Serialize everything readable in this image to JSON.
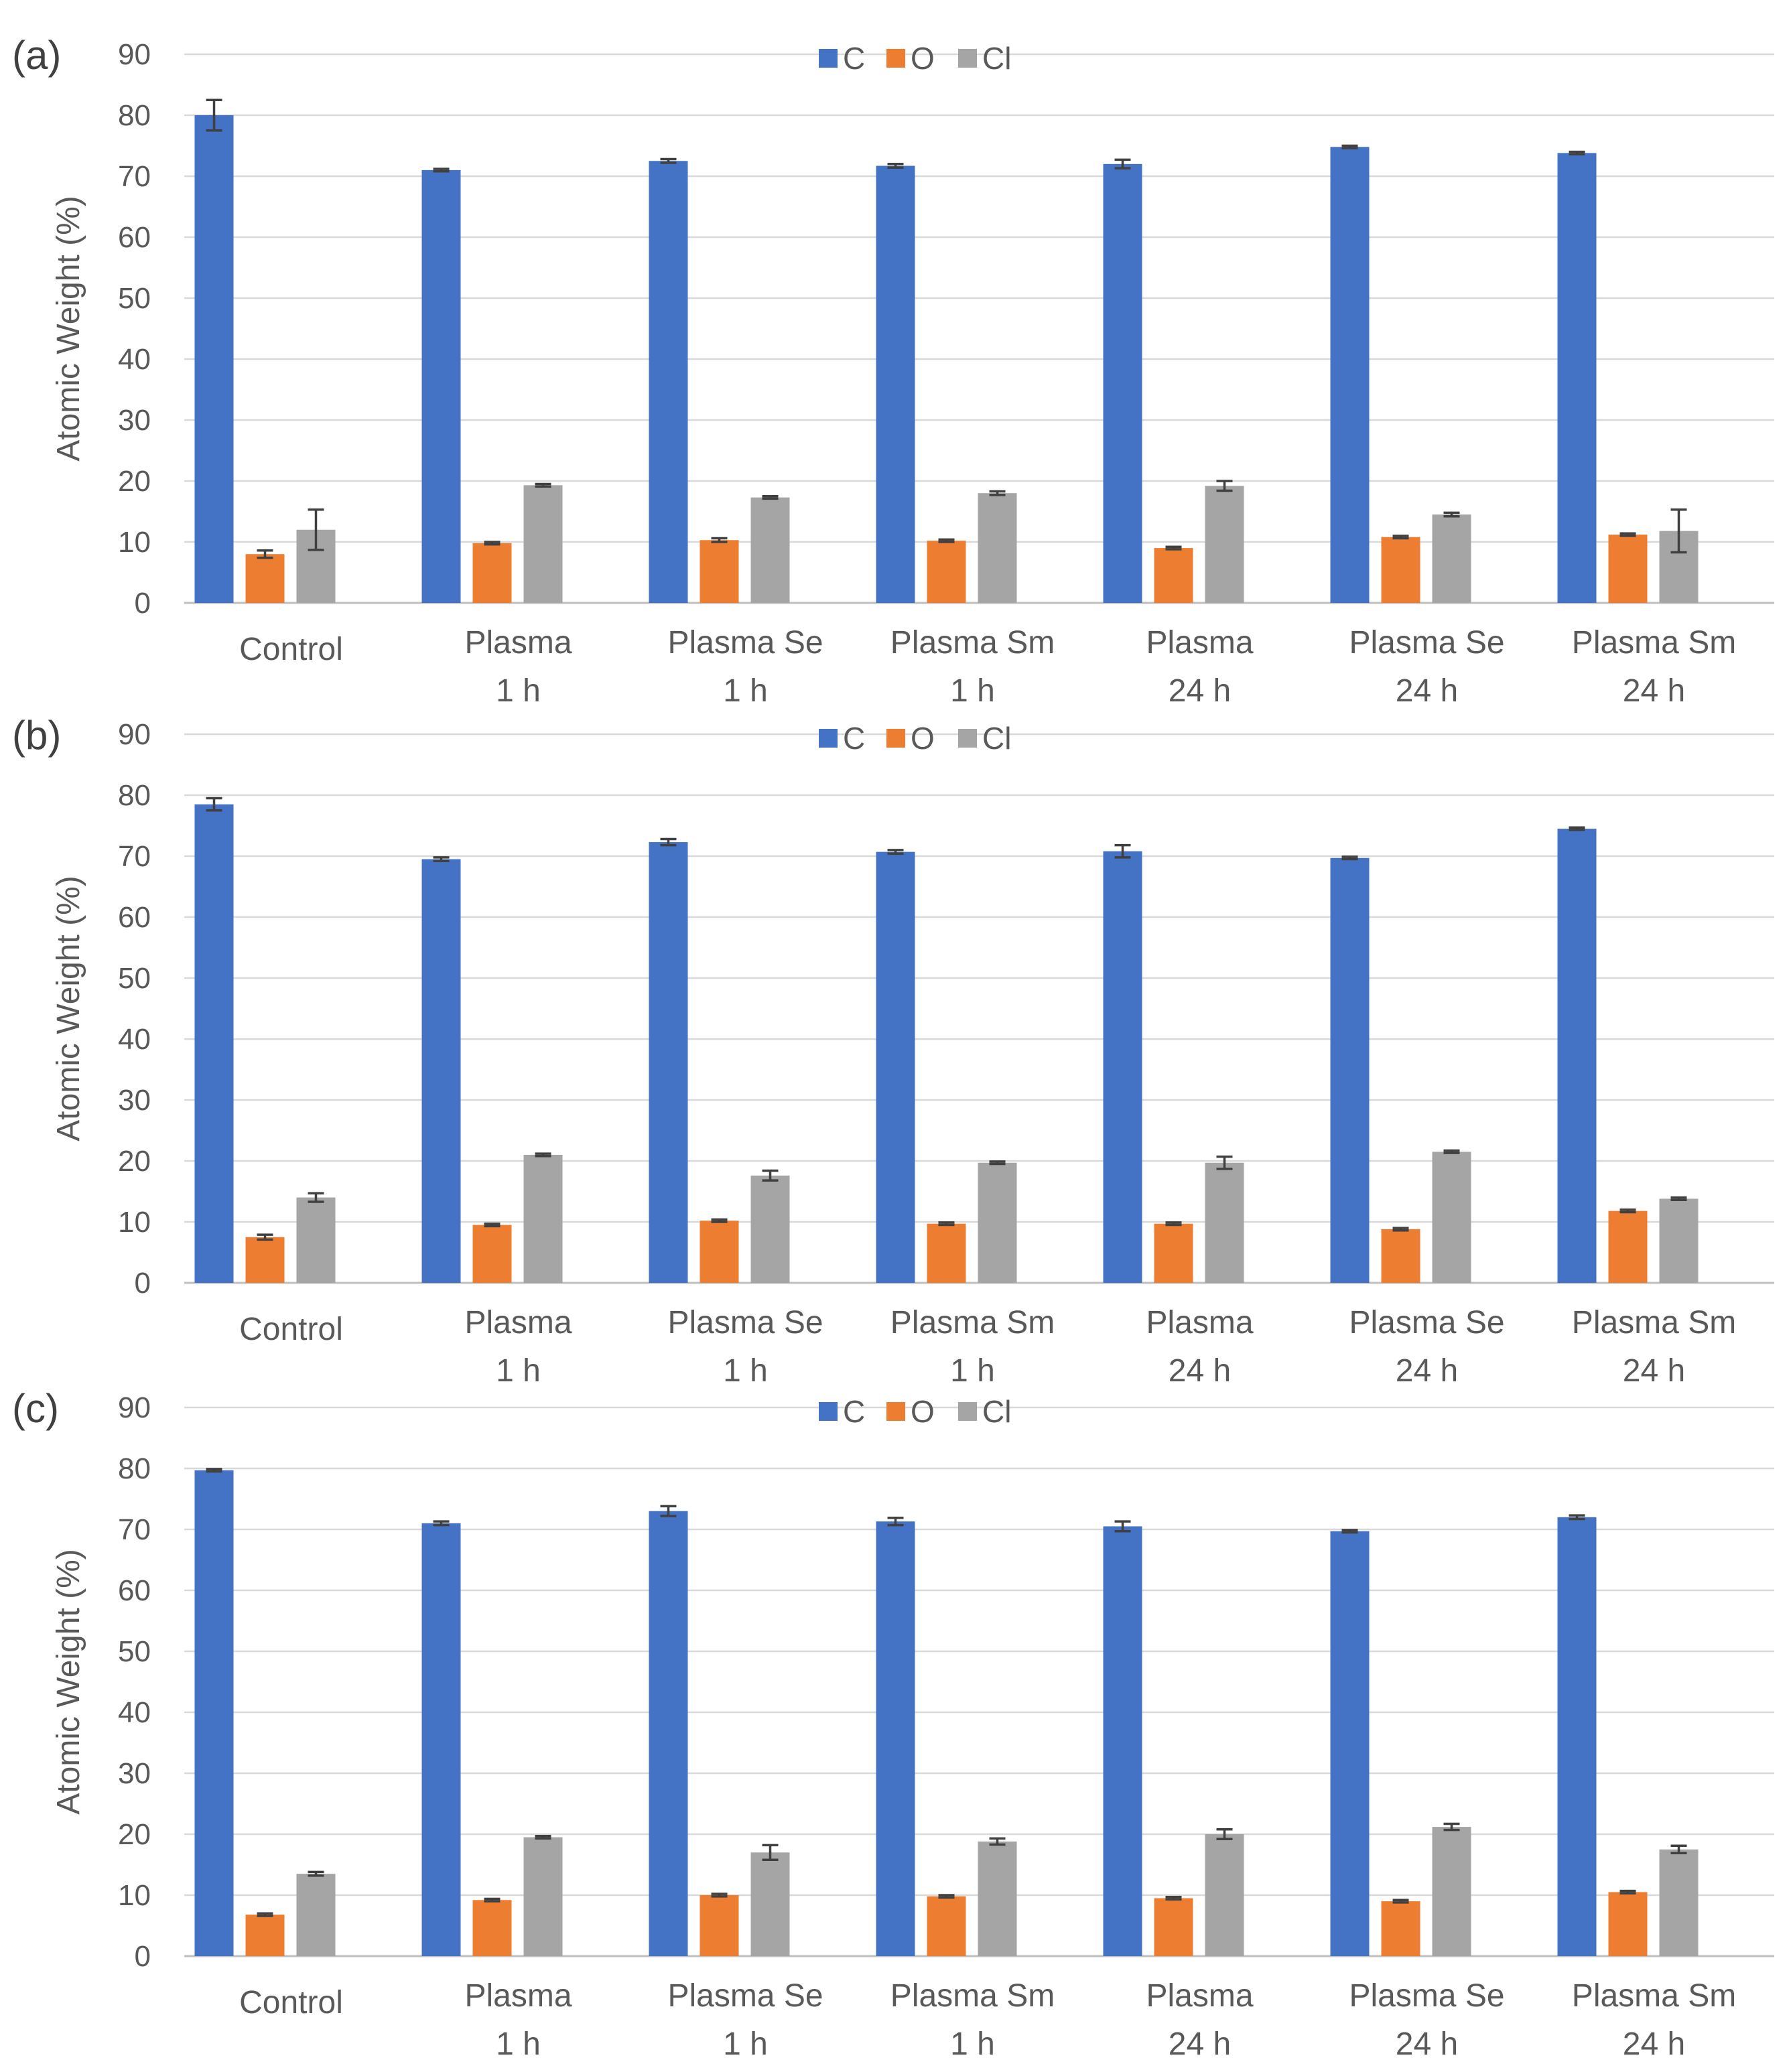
{
  "series_names": [
    "C",
    "O",
    "Cl"
  ],
  "series_colors": [
    "#4472C4",
    "#ED7D31",
    "#A5A5A5"
  ],
  "chart_data": [
    {
      "type": "bar",
      "panel": "(a)",
      "ylabel": "Atomic Weight (%)",
      "ylim": [
        0,
        90
      ],
      "yticks": [
        0,
        10,
        20,
        30,
        40,
        50,
        60,
        70,
        80,
        90
      ],
      "categories": [
        [
          "Control"
        ],
        [
          "Plasma",
          "1 h"
        ],
        [
          "Plasma Se",
          "1 h"
        ],
        [
          "Plasma Sm",
          "1 h"
        ],
        [
          "Plasma",
          "24 h"
        ],
        [
          "Plasma Se",
          "24 h"
        ],
        [
          "Plasma Sm",
          "24 h"
        ]
      ],
      "legend": [
        "C",
        "O",
        "Cl"
      ],
      "series": [
        {
          "name": "C",
          "values": [
            80.0,
            71.0,
            72.5,
            71.7,
            72.0,
            74.8,
            73.8
          ],
          "errors": [
            2.5,
            0.2,
            0.3,
            0.3,
            0.7,
            0.2,
            0.2
          ]
        },
        {
          "name": "O",
          "values": [
            8.0,
            9.8,
            10.3,
            10.2,
            9.0,
            10.8,
            11.2
          ],
          "errors": [
            0.6,
            0.2,
            0.3,
            0.2,
            0.2,
            0.2,
            0.2
          ]
        },
        {
          "name": "Cl",
          "values": [
            12.0,
            19.3,
            17.3,
            18.0,
            19.2,
            14.5,
            11.8
          ],
          "errors": [
            3.3,
            0.2,
            0.2,
            0.3,
            0.8,
            0.3,
            3.5
          ]
        }
      ]
    },
    {
      "type": "bar",
      "panel": "(b)",
      "ylabel": "Atomic Weight (%)",
      "ylim": [
        0,
        90
      ],
      "yticks": [
        0,
        10,
        20,
        30,
        40,
        50,
        60,
        70,
        80,
        90
      ],
      "categories": [
        [
          "Control"
        ],
        [
          "Plasma",
          "1 h"
        ],
        [
          "Plasma Se",
          "1 h"
        ],
        [
          "Plasma Sm",
          "1 h"
        ],
        [
          "Plasma",
          "24 h"
        ],
        [
          "Plasma Se",
          "24 h"
        ],
        [
          "Plasma Sm",
          "24 h"
        ]
      ],
      "legend": [
        "C",
        "O",
        "Cl"
      ],
      "series": [
        {
          "name": "C",
          "values": [
            78.5,
            69.5,
            72.3,
            70.7,
            70.8,
            69.7,
            74.5
          ],
          "errors": [
            1.0,
            0.3,
            0.5,
            0.3,
            1.0,
            0.2,
            0.2
          ]
        },
        {
          "name": "O",
          "values": [
            7.5,
            9.5,
            10.2,
            9.7,
            9.7,
            8.8,
            11.8
          ],
          "errors": [
            0.4,
            0.2,
            0.2,
            0.2,
            0.2,
            0.2,
            0.2
          ]
        },
        {
          "name": "Cl",
          "values": [
            14.0,
            21.0,
            17.6,
            19.7,
            19.7,
            21.5,
            13.8
          ],
          "errors": [
            0.7,
            0.2,
            0.8,
            0.2,
            1.0,
            0.2,
            0.2
          ]
        }
      ]
    },
    {
      "type": "bar",
      "panel": "(c)",
      "ylabel": "Atomic Weight (%)",
      "ylim": [
        0,
        90
      ],
      "yticks": [
        0,
        10,
        20,
        30,
        40,
        50,
        60,
        70,
        80,
        90
      ],
      "categories": [
        [
          "Control"
        ],
        [
          "Plasma",
          "1 h"
        ],
        [
          "Plasma Se",
          "1 h"
        ],
        [
          "Plasma Sm",
          "1 h"
        ],
        [
          "Plasma",
          "24 h"
        ],
        [
          "Plasma Se",
          "24 h"
        ],
        [
          "Plasma Sm",
          "24 h"
        ]
      ],
      "legend": [
        "C",
        "O",
        "Cl"
      ],
      "series": [
        {
          "name": "C",
          "values": [
            79.7,
            71.0,
            73.0,
            71.3,
            70.5,
            69.7,
            72.0
          ],
          "errors": [
            0.2,
            0.3,
            0.8,
            0.6,
            0.8,
            0.2,
            0.3
          ]
        },
        {
          "name": "O",
          "values": [
            6.8,
            9.2,
            10.0,
            9.8,
            9.5,
            9.0,
            10.5
          ],
          "errors": [
            0.2,
            0.2,
            0.2,
            0.2,
            0.2,
            0.2,
            0.2
          ]
        },
        {
          "name": "Cl",
          "values": [
            13.5,
            19.5,
            17.0,
            18.8,
            20.0,
            21.2,
            17.5
          ],
          "errors": [
            0.3,
            0.2,
            1.2,
            0.5,
            0.8,
            0.5,
            0.6
          ]
        }
      ]
    }
  ]
}
